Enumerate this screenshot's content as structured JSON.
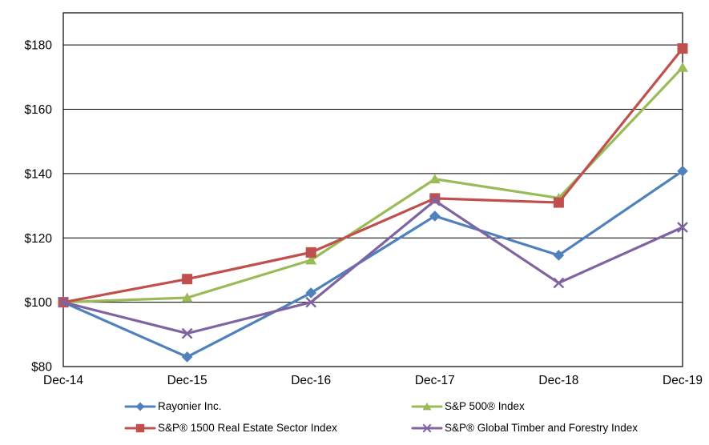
{
  "chart_data": {
    "type": "line",
    "title": "",
    "xlabel": "",
    "ylabel": "",
    "categories": [
      "Dec-14",
      "Dec-15",
      "Dec-16",
      "Dec-17",
      "Dec-18",
      "Dec-19"
    ],
    "series": [
      {
        "name": "Rayonier Inc.",
        "marker": "diamond",
        "color": "#4F81BD",
        "values": [
          100.0,
          83.0,
          102.9,
          126.8,
          114.6,
          140.8
        ]
      },
      {
        "name": "S&P 500® Index",
        "marker": "triangle",
        "color": "#9BBB59",
        "values": [
          100.0,
          101.4,
          113.1,
          138.3,
          132.4,
          173.0
        ]
      },
      {
        "name": "S&P® 1500 Real Estate Sector Index",
        "marker": "square",
        "color": "#C0504D",
        "values": [
          100.0,
          107.2,
          115.5,
          132.3,
          131.0,
          178.9
        ]
      },
      {
        "name": "S&P® Global Timber and Forestry Index",
        "marker": "x",
        "color": "#8064A2",
        "values": [
          100.0,
          90.3,
          100.0,
          131.6,
          106.0,
          123.3
        ]
      }
    ],
    "ylim": [
      80,
      190
    ],
    "y_ticks": [
      {
        "value": 80,
        "label": "$80"
      },
      {
        "value": 100,
        "label": "$100"
      },
      {
        "value": 120,
        "label": "$120"
      },
      {
        "value": 140,
        "label": "$140"
      },
      {
        "value": 160,
        "label": "$160"
      },
      {
        "value": 180,
        "label": "$180"
      }
    ],
    "grid": "horizontal",
    "legend_position": "bottom",
    "axis_color": "#000000",
    "background_color": "#FFFFFF"
  }
}
